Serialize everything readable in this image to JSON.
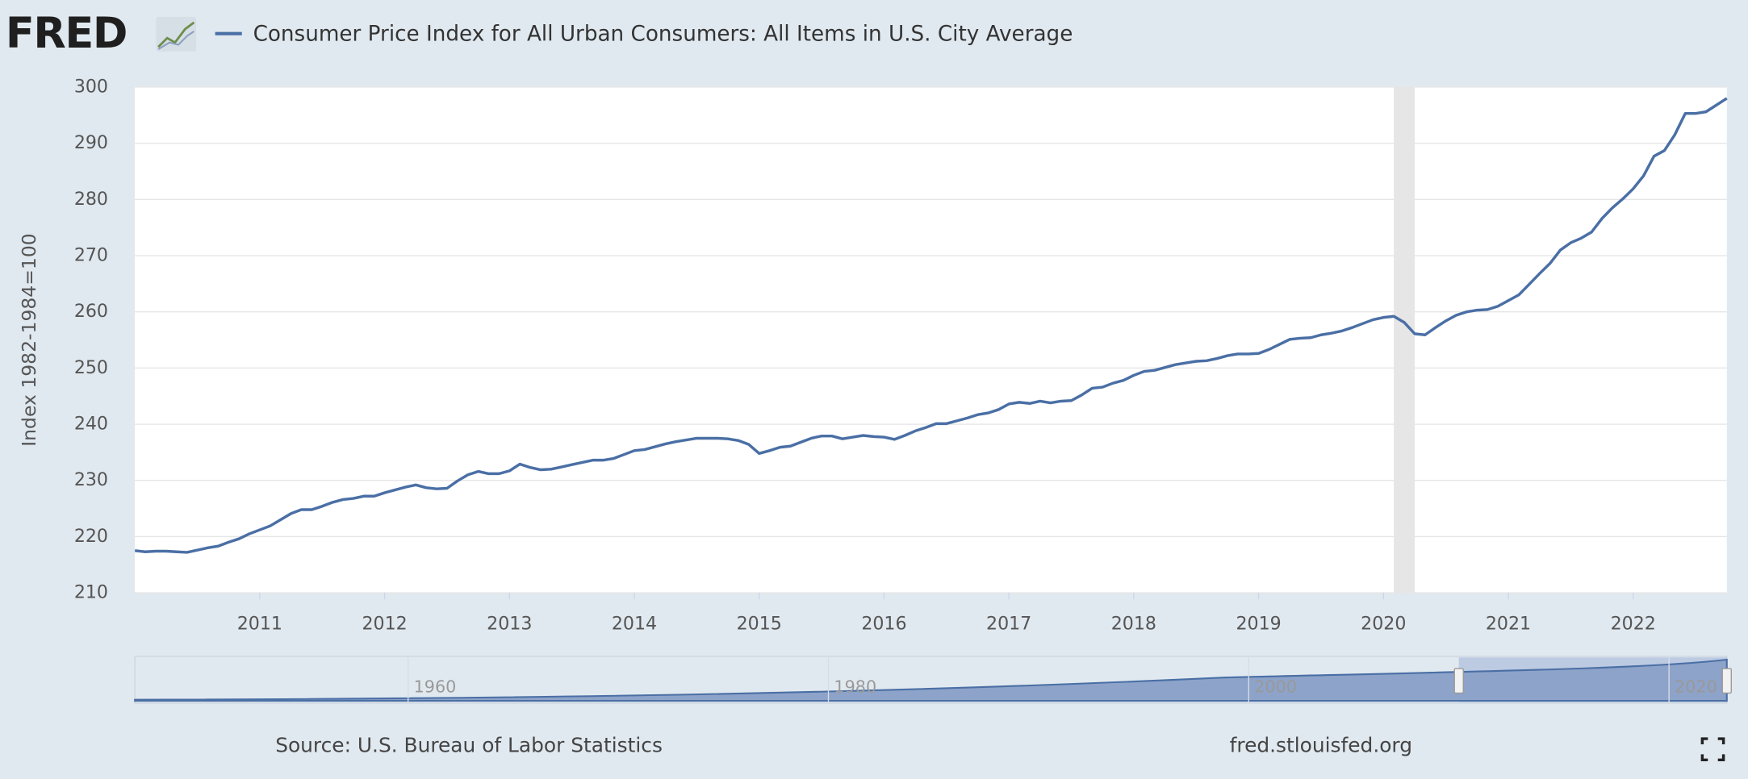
{
  "header": {
    "logo": "FRED"
  },
  "chart_data": {
    "type": "line",
    "y_label": "Index 1982-1984=100",
    "x": [
      2010,
      2010.083,
      2010.167,
      2010.25,
      2010.333,
      2010.417,
      2010.5,
      2010.583,
      2010.667,
      2010.75,
      2010.833,
      2010.917,
      2011,
      2011.083,
      2011.167,
      2011.25,
      2011.333,
      2011.417,
      2011.5,
      2011.583,
      2011.667,
      2011.75,
      2011.833,
      2011.917,
      2012,
      2012.083,
      2012.167,
      2012.25,
      2012.333,
      2012.417,
      2012.5,
      2012.583,
      2012.667,
      2012.75,
      2012.833,
      2012.917,
      2013,
      2013.083,
      2013.167,
      2013.25,
      2013.333,
      2013.417,
      2013.5,
      2013.583,
      2013.667,
      2013.75,
      2013.833,
      2013.917,
      2014,
      2014.083,
      2014.167,
      2014.25,
      2014.333,
      2014.417,
      2014.5,
      2014.583,
      2014.667,
      2014.75,
      2014.833,
      2014.917,
      2015,
      2015.083,
      2015.167,
      2015.25,
      2015.333,
      2015.417,
      2015.5,
      2015.583,
      2015.667,
      2015.75,
      2015.833,
      2015.917,
      2016,
      2016.083,
      2016.167,
      2016.25,
      2016.333,
      2016.417,
      2016.5,
      2016.583,
      2016.667,
      2016.75,
      2016.833,
      2016.917,
      2017,
      2017.083,
      2017.167,
      2017.25,
      2017.333,
      2017.417,
      2017.5,
      2017.583,
      2017.667,
      2017.75,
      2017.833,
      2017.917,
      2018,
      2018.083,
      2018.167,
      2018.25,
      2018.333,
      2018.417,
      2018.5,
      2018.583,
      2018.667,
      2018.75,
      2018.833,
      2018.917,
      2019,
      2019.083,
      2019.167,
      2019.25,
      2019.333,
      2019.417,
      2019.5,
      2019.583,
      2019.667,
      2019.75,
      2019.833,
      2019.917,
      2020,
      2020.083,
      2020.167,
      2020.25,
      2020.333,
      2020.417,
      2020.5,
      2020.583,
      2020.667,
      2020.75,
      2020.833,
      2020.917,
      2021,
      2021.083,
      2021.167,
      2021.25,
      2021.333,
      2021.417,
      2021.5,
      2021.583,
      2021.667,
      2021.75,
      2021.833,
      2021.917,
      2022,
      2022.083,
      2022.167,
      2022.25,
      2022.333,
      2022.417,
      2022.5,
      2022.583,
      2022.667,
      2022.75
    ],
    "series": [
      {
        "name": "Consumer Price Index for All Urban Consumers: All Items in U.S. City Average",
        "color": "#4a6fa5",
        "values": [
          217.5,
          217.3,
          217.4,
          217.4,
          217.3,
          217.2,
          217.6,
          218.0,
          218.3,
          219.0,
          219.6,
          220.5,
          221.2,
          221.9,
          223.0,
          224.1,
          224.8,
          224.8,
          225.4,
          226.1,
          226.6,
          226.8,
          227.2,
          227.2,
          227.8,
          228.3,
          228.8,
          229.2,
          228.7,
          228.5,
          228.6,
          229.9,
          231.0,
          231.6,
          231.2,
          231.2,
          231.7,
          232.9,
          232.3,
          231.9,
          232.0,
          232.4,
          232.8,
          233.2,
          233.6,
          233.6,
          233.9,
          234.6,
          235.3,
          235.5,
          236.0,
          236.5,
          236.9,
          237.2,
          237.5,
          237.5,
          237.5,
          237.4,
          237.1,
          236.4,
          234.8,
          235.3,
          235.9,
          236.1,
          236.8,
          237.5,
          237.9,
          237.9,
          237.4,
          237.7,
          238.0,
          237.8,
          237.7,
          237.3,
          238.0,
          238.8,
          239.4,
          240.1,
          240.1,
          240.6,
          241.1,
          241.7,
          242.0,
          242.6,
          243.6,
          243.9,
          243.7,
          244.1,
          243.8,
          244.1,
          244.2,
          245.2,
          246.4,
          246.6,
          247.3,
          247.8,
          248.7,
          249.4,
          249.6,
          250.1,
          250.6,
          250.9,
          251.2,
          251.3,
          251.7,
          252.2,
          252.5,
          252.5,
          252.6,
          253.3,
          254.2,
          255.1,
          255.3,
          255.4,
          255.9,
          256.2,
          256.6,
          257.2,
          257.9,
          258.6,
          259.0,
          259.2,
          258.1,
          256.1,
          255.9,
          257.2,
          258.4,
          259.4,
          260.0,
          260.3,
          260.4,
          261.0,
          262.0,
          263.0,
          264.9,
          266.8,
          268.6,
          271.0,
          272.3,
          273.1,
          274.2,
          276.6,
          278.5,
          280.1,
          281.9,
          284.2,
          287.7,
          288.7,
          291.5,
          295.3,
          295.3,
          295.6,
          296.8,
          298.0
        ]
      }
    ],
    "xlim": [
      2010,
      2022.75
    ],
    "xticks": [
      2011,
      2012,
      2013,
      2014,
      2015,
      2016,
      2017,
      2018,
      2019,
      2020,
      2021,
      2022
    ],
    "ylim": [
      210,
      300
    ],
    "yticks": [
      210,
      220,
      230,
      240,
      250,
      260,
      270,
      280,
      290,
      300
    ],
    "grid": true,
    "shaded_ranges": [
      [
        2020.083,
        2020.25
      ]
    ],
    "navigator": {
      "xlim": [
        1947,
        2022.75
      ],
      "xticks": [
        1960,
        1980,
        2000,
        2020
      ]
    }
  },
  "footer": {
    "source": "Source: U.S. Bureau of Labor Statistics",
    "site": "fred.stlouisfed.org"
  }
}
